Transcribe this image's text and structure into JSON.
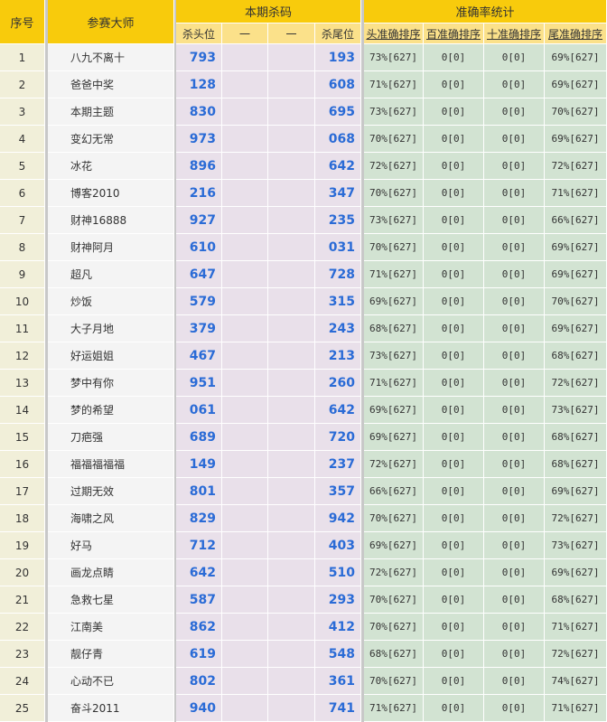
{
  "header": {
    "no": "序号",
    "master": "参赛大师",
    "kill_group": "本期杀码",
    "kill_head": "杀头位",
    "dash1": "一",
    "dash2": "一",
    "kill_tail": "杀尾位",
    "acc_group": "准确率统计",
    "acc_head": "头准确排序",
    "acc_hundred": "百准确排序",
    "acc_ten": "十准确排序",
    "acc_tail": "尾准确排序"
  },
  "colors": {
    "header_gold": "#f8cb0c",
    "header_light": "#fbe18a",
    "number_blue": "#2a6bd6",
    "kill_bg": "#e9e0ea",
    "acc_bg": "#d2e3d2",
    "no_bg": "#f1efd9"
  },
  "rows": [
    {
      "no": "1",
      "name": "八九不离十",
      "head": "793",
      "tail": "193",
      "a1": "73%[627]",
      "a2": "0[0]",
      "a3": "0[0]",
      "a4": "69%[627]"
    },
    {
      "no": "2",
      "name": "爸爸中奖",
      "head": "128",
      "tail": "608",
      "a1": "71%[627]",
      "a2": "0[0]",
      "a3": "0[0]",
      "a4": "69%[627]"
    },
    {
      "no": "3",
      "name": "本期主题",
      "head": "830",
      "tail": "695",
      "a1": "73%[627]",
      "a2": "0[0]",
      "a3": "0[0]",
      "a4": "70%[627]"
    },
    {
      "no": "4",
      "name": "变幻无常",
      "head": "973",
      "tail": "068",
      "a1": "70%[627]",
      "a2": "0[0]",
      "a3": "0[0]",
      "a4": "69%[627]"
    },
    {
      "no": "5",
      "name": "冰花",
      "head": "896",
      "tail": "642",
      "a1": "72%[627]",
      "a2": "0[0]",
      "a3": "0[0]",
      "a4": "72%[627]"
    },
    {
      "no": "6",
      "name": "博客2010",
      "head": "216",
      "tail": "347",
      "a1": "70%[627]",
      "a2": "0[0]",
      "a3": "0[0]",
      "a4": "71%[627]"
    },
    {
      "no": "7",
      "name": "财神16888",
      "head": "927",
      "tail": "235",
      "a1": "73%[627]",
      "a2": "0[0]",
      "a3": "0[0]",
      "a4": "66%[627]"
    },
    {
      "no": "8",
      "name": "财神阿月",
      "head": "610",
      "tail": "031",
      "a1": "70%[627]",
      "a2": "0[0]",
      "a3": "0[0]",
      "a4": "69%[627]"
    },
    {
      "no": "9",
      "name": "超凡",
      "head": "647",
      "tail": "728",
      "a1": "71%[627]",
      "a2": "0[0]",
      "a3": "0[0]",
      "a4": "69%[627]"
    },
    {
      "no": "10",
      "name": "炒饭",
      "head": "579",
      "tail": "315",
      "a1": "69%[627]",
      "a2": "0[0]",
      "a3": "0[0]",
      "a4": "70%[627]"
    },
    {
      "no": "11",
      "name": "大子月地",
      "head": "379",
      "tail": "243",
      "a1": "68%[627]",
      "a2": "0[0]",
      "a3": "0[0]",
      "a4": "69%[627]"
    },
    {
      "no": "12",
      "name": "好运姐姐",
      "head": "467",
      "tail": "213",
      "a1": "73%[627]",
      "a2": "0[0]",
      "a3": "0[0]",
      "a4": "68%[627]"
    },
    {
      "no": "13",
      "name": "梦中有你",
      "head": "951",
      "tail": "260",
      "a1": "71%[627]",
      "a2": "0[0]",
      "a3": "0[0]",
      "a4": "72%[627]"
    },
    {
      "no": "14",
      "name": "梦的希望",
      "head": "061",
      "tail": "642",
      "a1": "69%[627]",
      "a2": "0[0]",
      "a3": "0[0]",
      "a4": "73%[627]"
    },
    {
      "no": "15",
      "name": "刀疤强",
      "head": "689",
      "tail": "720",
      "a1": "69%[627]",
      "a2": "0[0]",
      "a3": "0[0]",
      "a4": "68%[627]"
    },
    {
      "no": "16",
      "name": "福福福福福",
      "head": "149",
      "tail": "237",
      "a1": "72%[627]",
      "a2": "0[0]",
      "a3": "0[0]",
      "a4": "68%[627]"
    },
    {
      "no": "17",
      "name": "过期无效",
      "head": "801",
      "tail": "357",
      "a1": "66%[627]",
      "a2": "0[0]",
      "a3": "0[0]",
      "a4": "69%[627]"
    },
    {
      "no": "18",
      "name": "海啸之风",
      "head": "829",
      "tail": "942",
      "a1": "70%[627]",
      "a2": "0[0]",
      "a3": "0[0]",
      "a4": "72%[627]"
    },
    {
      "no": "19",
      "name": "好马",
      "head": "712",
      "tail": "403",
      "a1": "69%[627]",
      "a2": "0[0]",
      "a3": "0[0]",
      "a4": "73%[627]"
    },
    {
      "no": "20",
      "name": "画龙点睛",
      "head": "642",
      "tail": "510",
      "a1": "72%[627]",
      "a2": "0[0]",
      "a3": "0[0]",
      "a4": "69%[627]"
    },
    {
      "no": "21",
      "name": "急救七星",
      "head": "587",
      "tail": "293",
      "a1": "70%[627]",
      "a2": "0[0]",
      "a3": "0[0]",
      "a4": "68%[627]"
    },
    {
      "no": "22",
      "name": "江南美",
      "head": "862",
      "tail": "412",
      "a1": "70%[627]",
      "a2": "0[0]",
      "a3": "0[0]",
      "a4": "71%[627]"
    },
    {
      "no": "23",
      "name": "靓仔青",
      "head": "619",
      "tail": "548",
      "a1": "68%[627]",
      "a2": "0[0]",
      "a3": "0[0]",
      "a4": "72%[627]"
    },
    {
      "no": "24",
      "name": "心动不已",
      "head": "802",
      "tail": "361",
      "a1": "70%[627]",
      "a2": "0[0]",
      "a3": "0[0]",
      "a4": "74%[627]"
    },
    {
      "no": "25",
      "name": "奋斗2011",
      "head": "940",
      "tail": "741",
      "a1": "71%[627]",
      "a2": "0[0]",
      "a3": "0[0]",
      "a4": "71%[627]"
    }
  ]
}
